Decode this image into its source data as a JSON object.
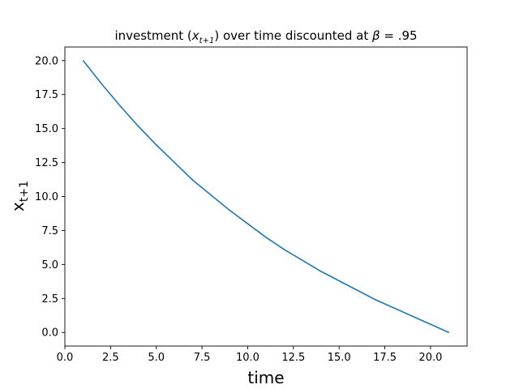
{
  "chart_data": {
    "type": "line",
    "title": {
      "prefix": "investment (",
      "var": "x",
      "var_sub": "t+1",
      "middle": ") over time discounted at ",
      "beta": "β",
      "suffix": " = .95"
    },
    "xlabel": "time",
    "ylabel": {
      "base": "x",
      "sub": "t+1"
    },
    "xlim": [
      0,
      22
    ],
    "ylim": [
      -1,
      21
    ],
    "xticks": [
      0.0,
      2.5,
      5.0,
      7.5,
      10.0,
      12.5,
      15.0,
      17.5,
      20.0
    ],
    "yticks": [
      0.0,
      2.5,
      5.0,
      7.5,
      10.0,
      12.5,
      15.0,
      17.5,
      20.0
    ],
    "grid": false,
    "series": [
      {
        "color": "#1f77b4",
        "x": [
          1,
          2,
          3,
          4,
          5,
          6,
          7,
          8,
          9,
          10,
          11,
          12,
          13,
          14,
          15,
          16,
          17,
          18,
          19,
          20,
          21
        ],
        "y": [
          20.0,
          18.3,
          16.7,
          15.2,
          13.8,
          12.5,
          11.2,
          10.1,
          9.0,
          8.0,
          7.0,
          6.1,
          5.3,
          4.5,
          3.8,
          3.1,
          2.4,
          1.8,
          1.2,
          0.6,
          0.0
        ]
      }
    ]
  }
}
